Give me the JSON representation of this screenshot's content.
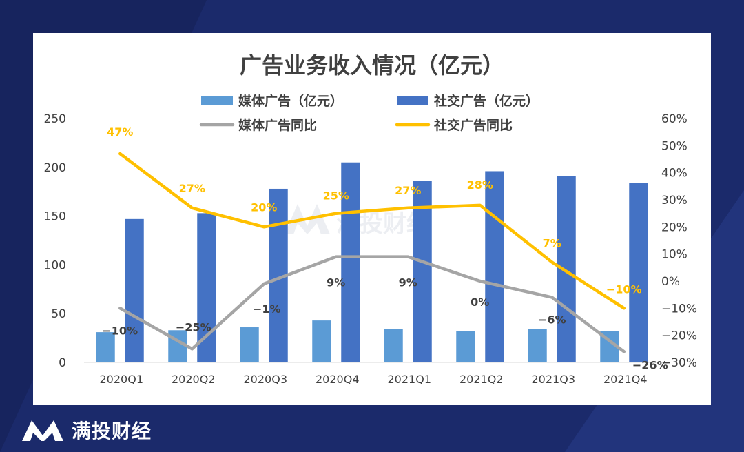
{
  "brand": {
    "name": "满投财经",
    "watermark": "满投财经"
  },
  "chart_data": {
    "type": "bar",
    "title": "广告业务收入情况（亿元）",
    "categories": [
      "2020Q1",
      "2020Q2",
      "2020Q3",
      "2020Q4",
      "2021Q1",
      "2021Q2",
      "2021Q3",
      "2021Q4"
    ],
    "series": [
      {
        "name": "媒体广告（亿元）",
        "kind": "bar",
        "axis": "left",
        "color": "#5b9bd5",
        "values": [
          31,
          33,
          36,
          43,
          34,
          32,
          34,
          32
        ]
      },
      {
        "name": "社交广告（亿元）",
        "kind": "bar",
        "axis": "left",
        "color": "#4472c4",
        "values": [
          147,
          153,
          178,
          205,
          186,
          196,
          191,
          184
        ]
      },
      {
        "name": "媒体广告同比",
        "kind": "line",
        "axis": "right",
        "color": "#a5a5a5",
        "values": [
          -10,
          -25,
          -1,
          9,
          9,
          0,
          -6,
          -26
        ],
        "labels": [
          "−10%",
          "−25%",
          "−1%",
          "9%",
          "9%",
          "0%",
          "−6%",
          "−26%"
        ]
      },
      {
        "name": "社交广告同比",
        "kind": "line",
        "axis": "right",
        "color": "#ffc000",
        "values": [
          47,
          27,
          20,
          25,
          27,
          28,
          7,
          -10
        ],
        "labels": [
          "47%",
          "27%",
          "20%",
          "25%",
          "27%",
          "28%",
          "7%",
          "−10%"
        ]
      }
    ],
    "ylim_left": [
      0,
      250
    ],
    "yticks_left": [
      "0",
      "50",
      "100",
      "150",
      "200",
      "250"
    ],
    "ylim_right": [
      -30,
      60
    ],
    "yticks_right": [
      "−30%",
      "−20%",
      "−10%",
      "0%",
      "10%",
      "20%",
      "30%",
      "40%",
      "50%",
      "60%"
    ],
    "grid": false,
    "legend_position": "top-center"
  }
}
